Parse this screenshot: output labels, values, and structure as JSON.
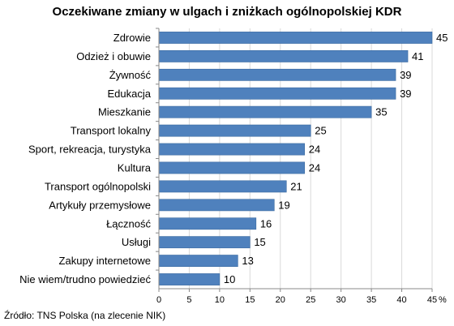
{
  "chart_data": {
    "type": "bar",
    "orientation": "horizontal",
    "title": "Oczekiwane zmiany w ulgach i zniżkach ogólnopolskiej KDR",
    "categories": [
      "Zdrowie",
      "Odzież i obuwie",
      "Żywność",
      "Edukacja",
      "Mieszkanie",
      "Transport lokalny",
      "Sport, rekreacja, turystyka",
      "Kultura",
      "Transport ogólnopolski",
      "Artykuły przemysłowe",
      "Łączność",
      "Usługi",
      "Zakupy internetowe",
      "Nie wiem/trudno powiedzieć"
    ],
    "values": [
      45,
      41,
      39,
      39,
      35,
      25,
      24,
      24,
      21,
      19,
      16,
      15,
      13,
      10
    ],
    "xlim": [
      0,
      45
    ],
    "xticks": [
      0,
      5,
      10,
      15,
      20,
      25,
      30,
      35,
      40,
      45
    ],
    "xunit": "%",
    "grid": true,
    "bar_color": "#4F81BD",
    "source": "Źródło: TNS Polska (na zlecenie NIK)"
  }
}
